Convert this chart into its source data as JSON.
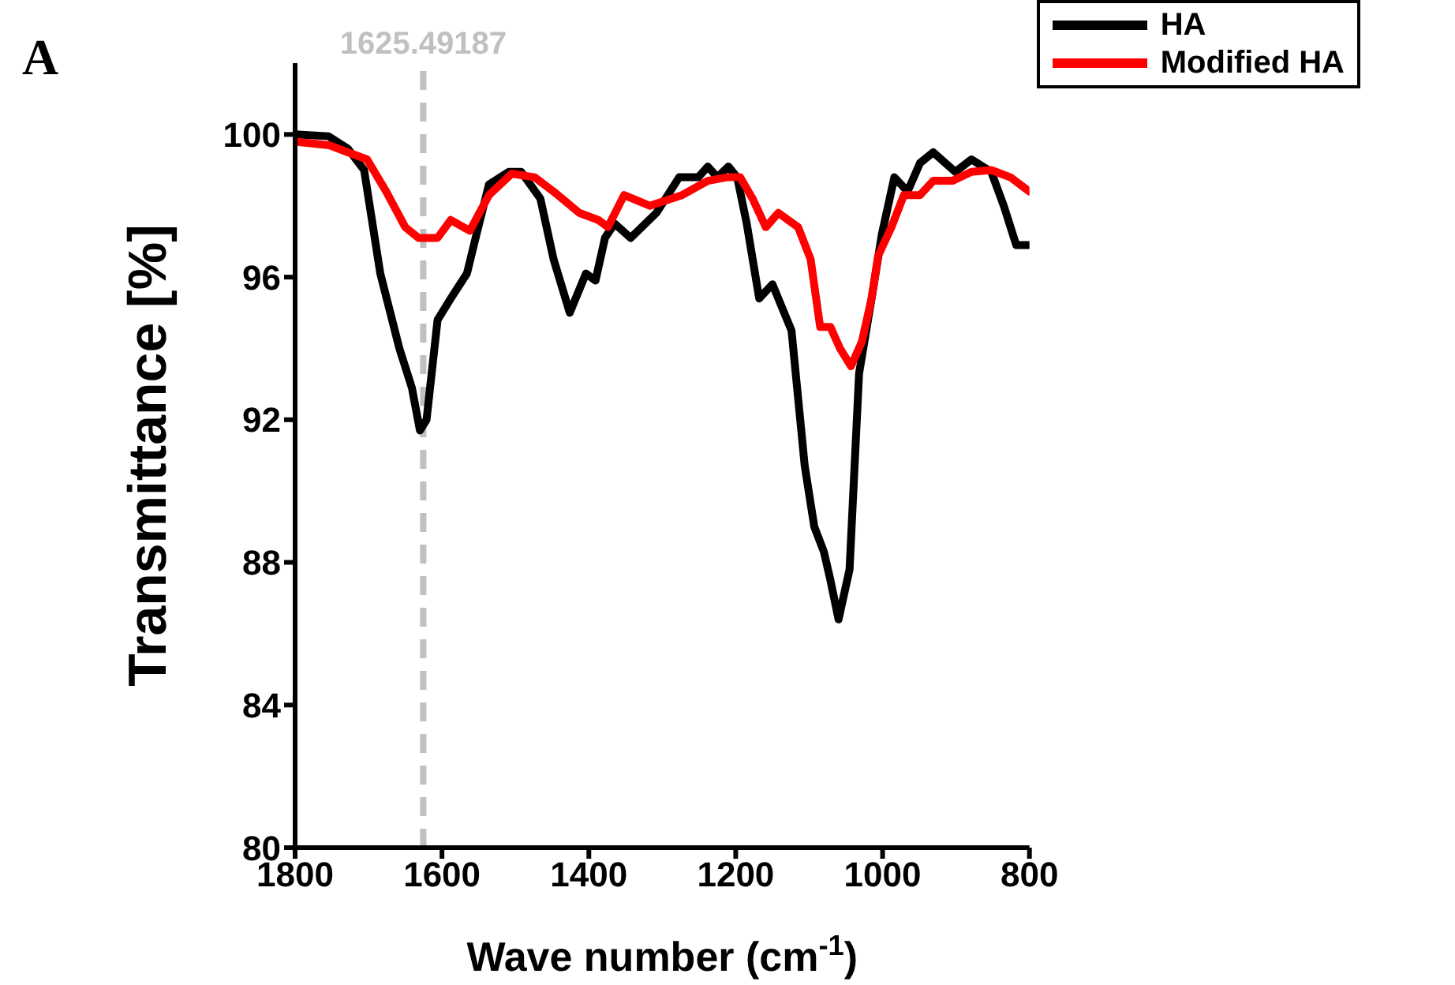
{
  "chart_data": {
    "type": "line",
    "title": "A",
    "xlabel": "Wave number (cm$^{-1}$)",
    "ylabel": "Transmittance [%]",
    "xlim": [
      1800,
      800
    ],
    "xticks": [
      1800,
      1600,
      1400,
      1200,
      1000,
      800
    ],
    "ylim": [
      80,
      102
    ],
    "yticks": [
      80,
      84,
      88,
      92,
      96,
      100
    ],
    "grid": false,
    "legend": "top right",
    "marker": "none",
    "line_style": "solid",
    "ref_lines": [
      {
        "axis": "x",
        "value": 1625.49187,
        "label": "1625.49187",
        "color": "#c0c0c0",
        "line_style": "dashed"
      }
    ],
    "series": [
      {
        "name": "HA",
        "color": "#000000",
        "x": [
          1800,
          1754.5,
          1728,
          1706,
          1684,
          1658,
          1641,
          1630,
          1621,
          1606,
          1588,
          1566,
          1553,
          1536,
          1509,
          1492,
          1466,
          1448,
          1426,
          1404,
          1391,
          1378,
          1365,
          1343,
          1308,
          1277,
          1251,
          1238,
          1225,
          1210,
          1198,
          1185,
          1168,
          1150,
          1124,
          1106,
          1093,
          1080,
          1071,
          1060,
          1045,
          1032,
          1015,
          1001,
          984,
          966,
          949,
          931,
          901,
          879,
          852,
          835,
          818,
          800
        ],
        "values": [
          100,
          99.95,
          99.6,
          99.0,
          96.1,
          94.0,
          92.9,
          91.7,
          92.0,
          94.8,
          95.4,
          96.1,
          97.2,
          98.6,
          98.95,
          98.95,
          98.2,
          96.5,
          95.0,
          96.1,
          95.9,
          97.1,
          97.5,
          97.1,
          97.8,
          98.8,
          98.8,
          99.1,
          98.8,
          99.1,
          98.8,
          97.5,
          95.4,
          95.8,
          94.5,
          90.7,
          89.0,
          88.3,
          87.5,
          86.4,
          87.8,
          93.3,
          95.4,
          97.2,
          98.8,
          98.4,
          99.2,
          99.5,
          98.95,
          99.3,
          98.95,
          98.0,
          96.9,
          96.9
        ]
      },
      {
        "name": "Modified HA",
        "color": "#ff0000",
        "x": [
          1800,
          1754,
          1728,
          1702,
          1676,
          1650,
          1632,
          1606,
          1588,
          1562,
          1536,
          1505,
          1474,
          1448,
          1413,
          1387,
          1374,
          1352,
          1317,
          1273,
          1238,
          1212,
          1194,
          1177,
          1159,
          1142,
          1115,
          1098,
          1085,
          1071,
          1058,
          1043,
          1028,
          1015,
          1006,
          988,
          971,
          949,
          931,
          905,
          879,
          852,
          826,
          800
        ],
        "values": [
          99.8,
          99.7,
          99.5,
          99.3,
          98.4,
          97.4,
          97.1,
          97.1,
          97.6,
          97.3,
          98.3,
          98.9,
          98.8,
          98.4,
          97.8,
          97.6,
          97.4,
          98.3,
          98.0,
          98.3,
          98.7,
          98.8,
          98.8,
          98.2,
          97.4,
          97.8,
          97.4,
          96.5,
          94.6,
          94.6,
          94.0,
          93.5,
          94.2,
          95.4,
          96.6,
          97.4,
          98.3,
          98.3,
          98.7,
          98.7,
          98.95,
          99.0,
          98.8,
          98.4
        ]
      }
    ]
  }
}
